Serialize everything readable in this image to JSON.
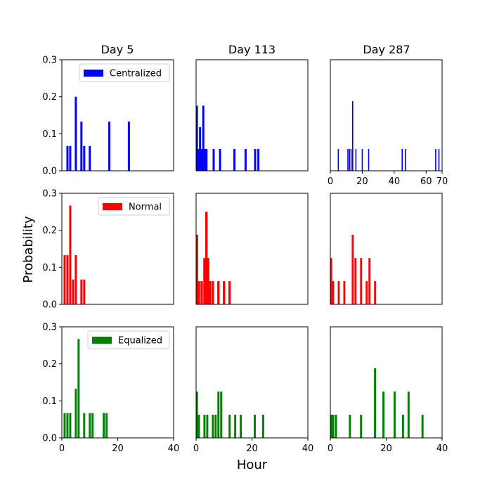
{
  "ylabel": "Probability",
  "xlabel": "Hour",
  "col_titles": [
    "Day 5",
    "Day 113",
    "Day 287"
  ],
  "colors": {
    "centralized": "#0000ff",
    "normal": "#ff0000",
    "equalized": "#008000"
  },
  "chart_data": [
    {
      "type": "bar",
      "row": 0,
      "col": 0,
      "color": "#0000ff",
      "legend": "Centralized",
      "xlim": [
        0,
        40
      ],
      "ylim": [
        0,
        0.3
      ],
      "bar_width": 0.75,
      "x": [
        2,
        3,
        5,
        7,
        8,
        10,
        17,
        24
      ],
      "values": [
        0.067,
        0.067,
        0.2,
        0.133,
        0.067,
        0.067,
        0.133,
        0.133
      ],
      "yticks": [
        "0.0",
        "0.1",
        "0.2",
        "0.3"
      ],
      "xticks": []
    },
    {
      "type": "bar",
      "row": 0,
      "col": 1,
      "color": "#0000ff",
      "xlim": [
        0,
        70
      ],
      "ylim": [
        0,
        0.3
      ],
      "bar_width": 1.3,
      "x": [
        0.5,
        1.5,
        2.5,
        3.5,
        4.5,
        5.5,
        6.5,
        11,
        15,
        24,
        31,
        37,
        39
      ],
      "values": [
        0.176,
        0.059,
        0.118,
        0.059,
        0.176,
        0.059,
        0.059,
        0.059,
        0.059,
        0.059,
        0.059,
        0.059,
        0.059
      ],
      "yticks": [],
      "xticks": []
    },
    {
      "type": "bar",
      "row": 0,
      "col": 2,
      "color": "#0000ff",
      "xlim": [
        0,
        70
      ],
      "ylim": [
        0,
        0.3
      ],
      "bar_width": 0.7,
      "x": [
        5,
        11,
        12,
        13,
        14,
        16,
        20,
        24,
        45,
        47,
        66,
        68
      ],
      "values": [
        0.059,
        0.059,
        0.059,
        0.059,
        0.188,
        0.059,
        0.059,
        0.059,
        0.059,
        0.059,
        0.059,
        0.059
      ],
      "yticks": [],
      "xticks": [
        "0",
        "20",
        "40",
        "60",
        "70"
      ],
      "xtick_values": [
        0,
        20,
        40,
        60,
        70
      ]
    },
    {
      "type": "bar",
      "row": 1,
      "col": 0,
      "color": "#ff0000",
      "legend": "Normal",
      "xlim": [
        0,
        40
      ],
      "ylim": [
        0,
        0.3
      ],
      "bar_width": 0.75,
      "x": [
        1,
        2,
        3,
        4,
        5,
        7,
        8
      ],
      "values": [
        0.133,
        0.133,
        0.267,
        0.067,
        0.133,
        0.067,
        0.067
      ],
      "yticks": [
        "0.0",
        "0.1",
        "0.2",
        "0.3"
      ],
      "xticks": []
    },
    {
      "type": "bar",
      "row": 1,
      "col": 1,
      "color": "#ff0000",
      "xlim": [
        0,
        40
      ],
      "ylim": [
        0,
        0.3
      ],
      "bar_width": 0.85,
      "x": [
        0.3,
        1,
        2,
        3,
        3.7,
        4.3,
        5,
        6,
        8,
        10,
        12
      ],
      "values": [
        0.188,
        0.0625,
        0.0625,
        0.125,
        0.25,
        0.125,
        0.0625,
        0.0625,
        0.0625,
        0.0625,
        0.0625
      ],
      "yticks": [],
      "xticks": []
    },
    {
      "type": "bar",
      "row": 1,
      "col": 2,
      "color": "#ff0000",
      "xlim": [
        0,
        40
      ],
      "ylim": [
        0,
        0.3
      ],
      "bar_width": 0.7,
      "x": [
        0.3,
        1,
        3,
        5,
        8,
        9,
        11,
        13,
        14,
        16
      ],
      "values": [
        0.125,
        0.0625,
        0.0625,
        0.0625,
        0.188,
        0.125,
        0.125,
        0.0625,
        0.125,
        0.0625
      ],
      "yticks": [],
      "xticks": []
    },
    {
      "type": "bar",
      "row": 2,
      "col": 0,
      "color": "#008000",
      "legend": "Equalized",
      "xlim": [
        0,
        40
      ],
      "ylim": [
        0,
        0.3
      ],
      "bar_width": 0.75,
      "x": [
        1,
        2,
        3,
        5,
        6,
        8,
        10,
        11,
        15,
        16
      ],
      "values": [
        0.067,
        0.067,
        0.067,
        0.133,
        0.267,
        0.067,
        0.067,
        0.067,
        0.067,
        0.067
      ],
      "yticks": [
        "0.0",
        "0.1",
        "0.2",
        "0.3"
      ],
      "xticks": [
        "0",
        "20",
        "40"
      ],
      "xtick_values": [
        0,
        20,
        40
      ]
    },
    {
      "type": "bar",
      "row": 2,
      "col": 1,
      "color": "#008000",
      "xlim": [
        0,
        40
      ],
      "ylim": [
        0,
        0.3
      ],
      "bar_width": 0.75,
      "x": [
        0.3,
        1,
        3,
        4,
        6,
        7,
        8,
        9,
        12,
        14,
        16,
        21,
        24
      ],
      "values": [
        0.125,
        0.0625,
        0.0625,
        0.0625,
        0.0625,
        0.0625,
        0.125,
        0.125,
        0.0625,
        0.0625,
        0.0625,
        0.0625,
        0.0625
      ],
      "yticks": [],
      "xticks": [
        "0",
        "20",
        "40"
      ],
      "xtick_values": [
        0,
        20,
        40
      ]
    },
    {
      "type": "bar",
      "row": 2,
      "col": 2,
      "color": "#008000",
      "xlim": [
        0,
        40
      ],
      "ylim": [
        0,
        0.3
      ],
      "bar_width": 0.75,
      "x": [
        0.3,
        1,
        2,
        7,
        11,
        16,
        19,
        23,
        26,
        28,
        33
      ],
      "values": [
        0.0625,
        0.0625,
        0.0625,
        0.0625,
        0.0625,
        0.188,
        0.125,
        0.125,
        0.0625,
        0.125,
        0.0625
      ],
      "yticks": [],
      "xticks": [
        "0",
        "20",
        "40"
      ],
      "xtick_values": [
        0,
        20,
        40
      ]
    }
  ]
}
